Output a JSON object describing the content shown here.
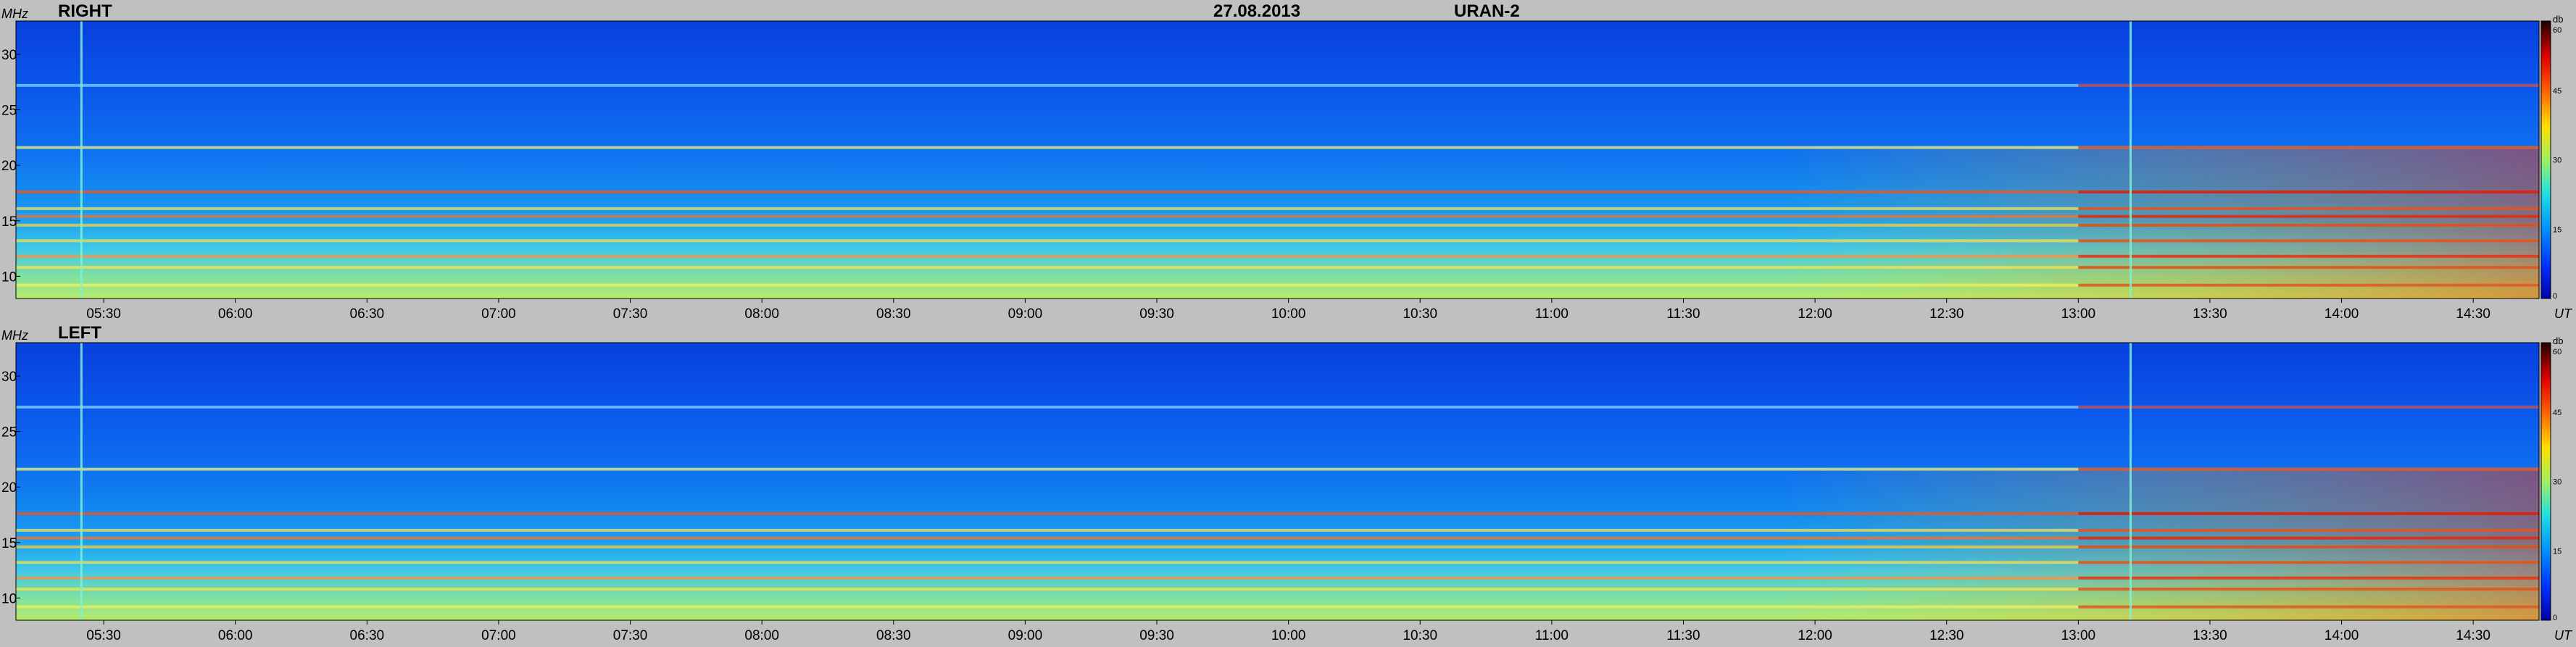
{
  "header": {
    "date": "27.08.2013",
    "instrument": "URAN-2"
  },
  "chart_data": [
    {
      "type": "heatmap",
      "title": "RIGHT",
      "ylabel": "MHz",
      "xlabel": "UT",
      "ylim": [
        8,
        33
      ],
      "yticks": [
        "10",
        "15",
        "20",
        "25",
        "30"
      ],
      "yticks_values": [
        10,
        15,
        20,
        25,
        30
      ],
      "xlim": [
        "05:10",
        "14:45"
      ],
      "xticks": [
        "05:30",
        "06:00",
        "06:30",
        "07:00",
        "07:30",
        "08:00",
        "08:30",
        "09:00",
        "09:30",
        "10:00",
        "10:30",
        "11:00",
        "11:30",
        "12:00",
        "12:30",
        "13:00",
        "13:30",
        "14:00",
        "14:30"
      ],
      "colorbar": {
        "label": "db",
        "ticks": [
          "0",
          "15",
          "30",
          "45",
          "60"
        ],
        "range": [
          0,
          60
        ]
      },
      "features": {
        "horizontal_bands_mhz": [
          9.2,
          10.8,
          11.8,
          13.2,
          14.6,
          15.4,
          16.1,
          17.6,
          21.6,
          27.2
        ],
        "vertical_bursts_ut": [
          "05:25",
          "13:12"
        ]
      }
    },
    {
      "type": "heatmap",
      "title": "LEFT",
      "ylabel": "MHz",
      "xlabel": "UT",
      "ylim": [
        8,
        33
      ],
      "yticks": [
        "10",
        "15",
        "20",
        "25",
        "30"
      ],
      "yticks_values": [
        10,
        15,
        20,
        25,
        30
      ],
      "xlim": [
        "05:10",
        "14:45"
      ],
      "xticks": [
        "05:30",
        "06:00",
        "06:30",
        "07:00",
        "07:30",
        "08:00",
        "08:30",
        "09:00",
        "09:30",
        "10:00",
        "10:30",
        "11:00",
        "11:30",
        "12:00",
        "12:30",
        "13:00",
        "13:30",
        "14:00",
        "14:30"
      ],
      "colorbar": {
        "label": "db",
        "ticks": [
          "0",
          "15",
          "30",
          "45",
          "60"
        ],
        "range": [
          0,
          60
        ]
      },
      "features": {
        "horizontal_bands_mhz": [
          9.2,
          10.8,
          11.8,
          13.2,
          14.6,
          15.4,
          16.1,
          17.6,
          21.6,
          27.2
        ],
        "vertical_bursts_ut": [
          "05:25",
          "13:12"
        ]
      }
    }
  ]
}
